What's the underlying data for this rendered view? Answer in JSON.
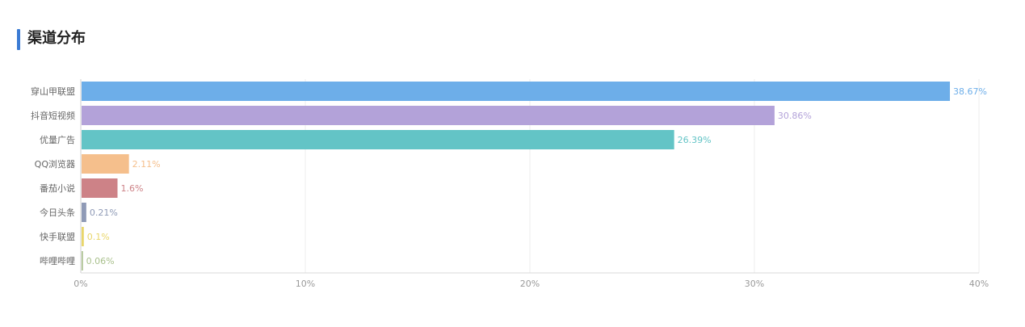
{
  "panel": {
    "title": "渠道分布",
    "accent_color": "#3b7bd4"
  },
  "chart_data": {
    "type": "bar",
    "orientation": "horizontal",
    "categories": [
      "穿山甲联盟",
      "抖音短视频",
      "优量广告",
      "QQ浏览器",
      "番茄小说",
      "今日头条",
      "快手联盟",
      "哔哩哔哩"
    ],
    "values": [
      38.67,
      30.86,
      26.39,
      2.11,
      1.6,
      0.21,
      0.1,
      0.06
    ],
    "value_labels": [
      "38.67%",
      "30.86%",
      "26.39%",
      "2.11%",
      "1.6%",
      "0.21%",
      "0.1%",
      "0.06%"
    ],
    "colors": [
      "#6daee9",
      "#b3a2d9",
      "#63c4c6",
      "#f5bf8c",
      "#cd8287",
      "#8f9ab6",
      "#e9d66a",
      "#a9c08c"
    ],
    "xlim": [
      0,
      40
    ],
    "xticks": [
      0,
      10,
      20,
      30,
      40
    ],
    "xtick_labels": [
      "0%",
      "10%",
      "20%",
      "30%",
      "40%"
    ],
    "grid": true
  }
}
